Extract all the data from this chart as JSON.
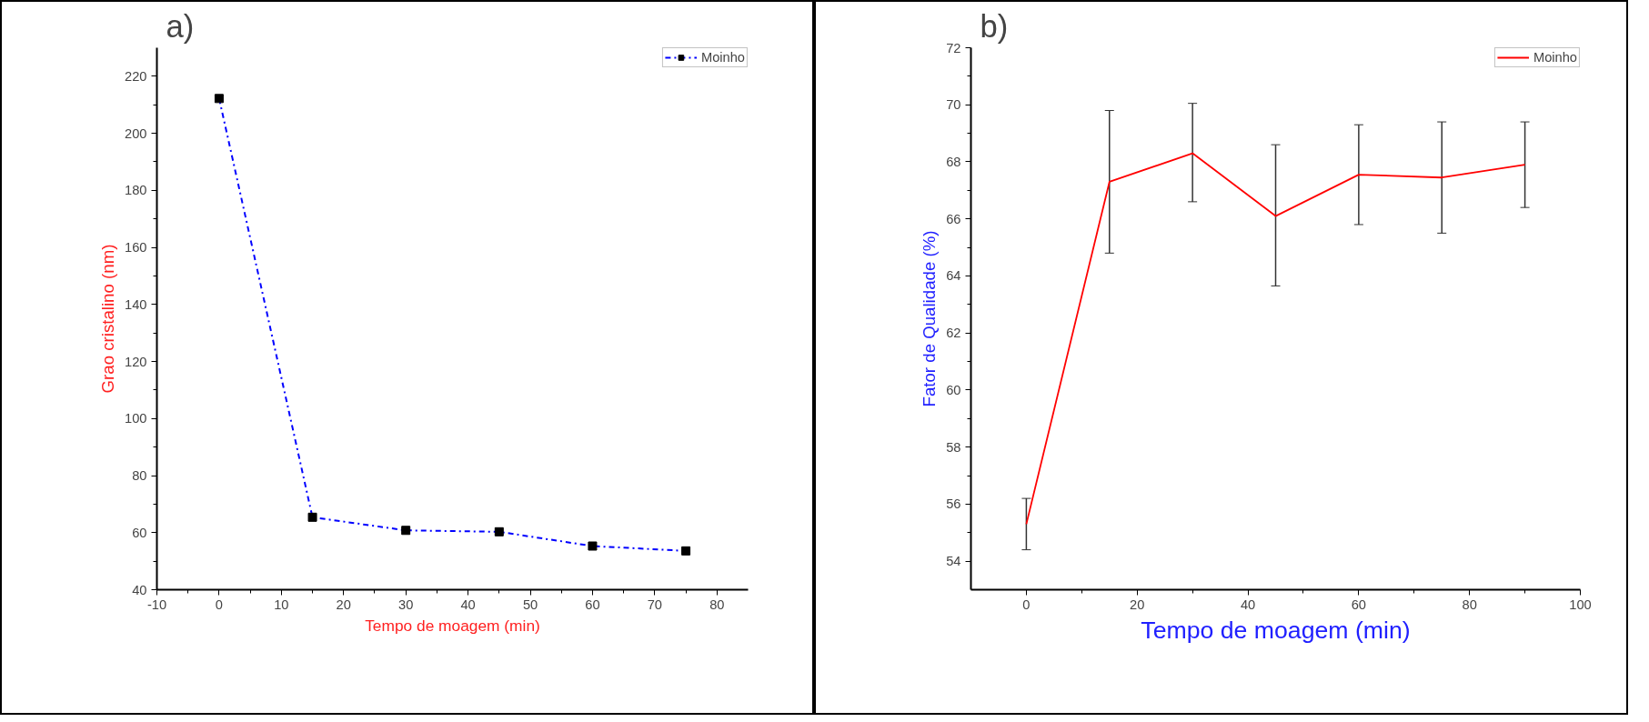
{
  "chart_data": [
    {
      "type": "line",
      "title": "a)",
      "xlabel": "Tempo de moagem (min)",
      "ylabel": "Grao cristalino (nm)",
      "x": [
        0,
        15,
        30,
        45,
        60,
        75
      ],
      "series": [
        {
          "name": "Moinho",
          "color": "#0000ff",
          "values": [
            212.2,
            65.4,
            60.8,
            60.3,
            55.3,
            53.6
          ]
        }
      ],
      "xlim": [
        -10,
        85
      ],
      "xticks": [
        -10,
        0,
        10,
        20,
        30,
        40,
        50,
        60,
        70,
        80
      ],
      "ylim": [
        40,
        230
      ],
      "yticks": [
        40,
        60,
        80,
        100,
        120,
        140,
        160,
        180,
        200,
        220
      ],
      "grid": false,
      "legend": "top right",
      "marker": "square",
      "line_style": "dashed"
    },
    {
      "type": "line",
      "title": "b)",
      "xlabel": "Tempo de moagem (min)",
      "ylabel": "Fator de Qualidade (%)",
      "x": [
        0,
        15,
        30,
        45,
        60,
        75,
        90
      ],
      "series": [
        {
          "name": "Moinho",
          "color": "#ff0000",
          "values": [
            55.3,
            67.3,
            68.3,
            66.1,
            67.55,
            67.45,
            67.9
          ],
          "errors": [
            [
              54.4,
              56.2
            ],
            [
              64.8,
              69.8
            ],
            [
              66.6,
              70.05
            ],
            [
              63.65,
              68.6
            ],
            [
              65.8,
              69.3
            ],
            [
              65.5,
              69.4
            ],
            [
              66.4,
              69.4
            ]
          ]
        }
      ],
      "xlim": [
        -10,
        100
      ],
      "xticks": [
        0,
        20,
        40,
        60,
        80,
        100
      ],
      "ylim": [
        53,
        72
      ],
      "yticks": [
        54,
        56,
        58,
        60,
        62,
        64,
        66,
        68,
        70,
        72
      ],
      "grid": false,
      "legend": "top right",
      "marker": "none",
      "line_style": "solid"
    }
  ]
}
